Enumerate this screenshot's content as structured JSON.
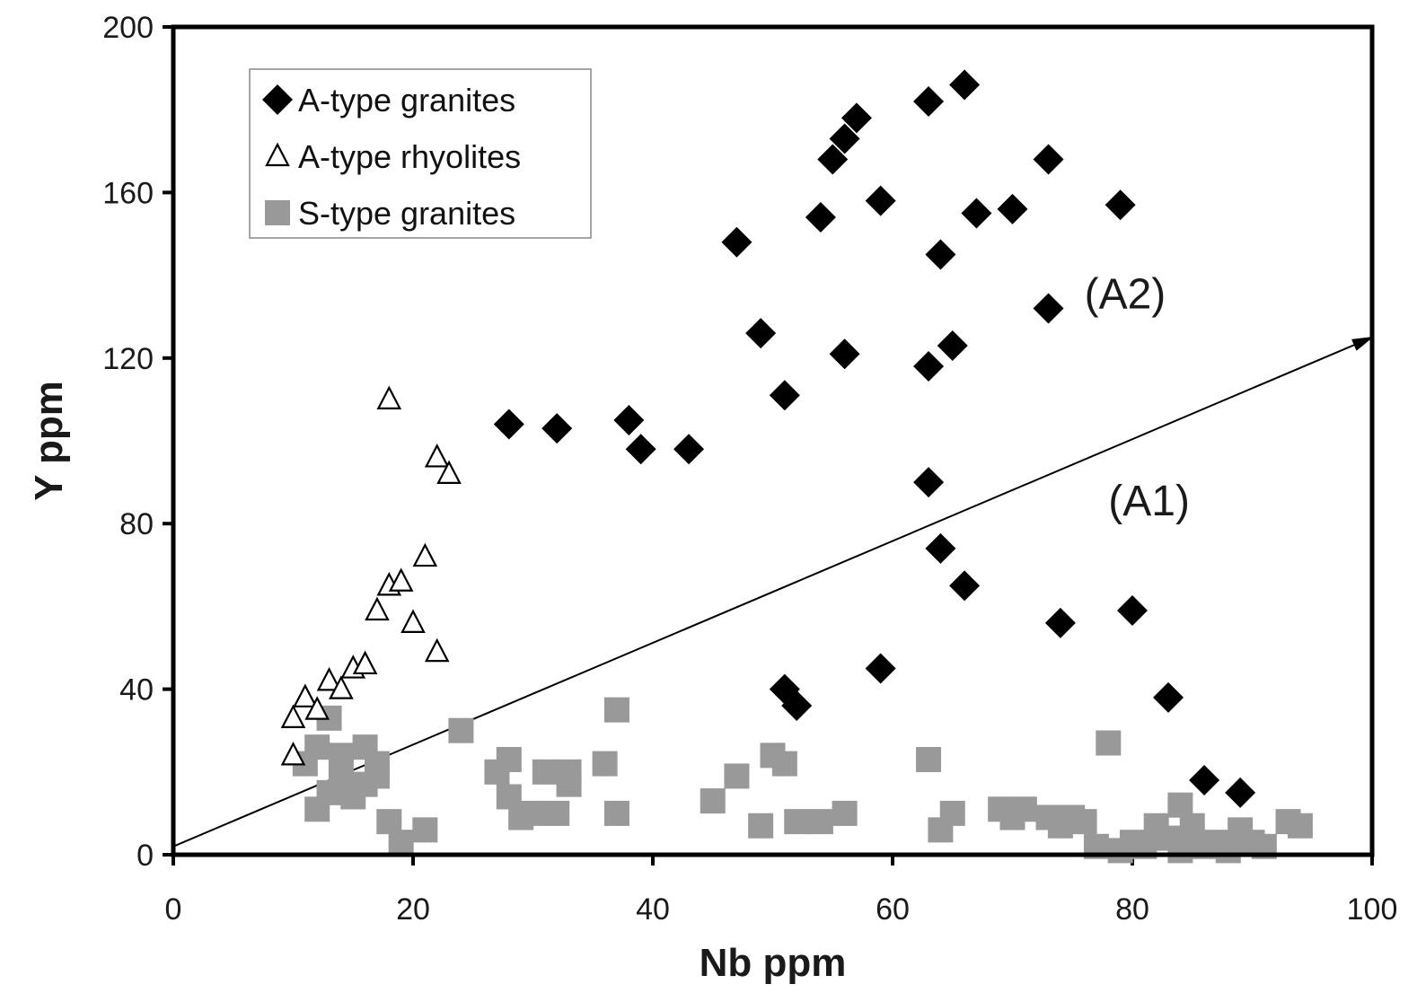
{
  "chart_data": {
    "type": "scatter",
    "xlabel": "Nb ppm",
    "ylabel": "Y ppm",
    "xlim": [
      0,
      100
    ],
    "ylim": [
      0,
      200
    ],
    "xticks": [
      "0",
      "20",
      "40",
      "60",
      "80",
      "100"
    ],
    "yticks": [
      "0",
      "40",
      "80",
      "120",
      "160",
      "200"
    ],
    "grid": false,
    "legend_position": "top-left",
    "series": [
      {
        "name": "A-type granites",
        "marker": "filled-diamond",
        "color": "#000000",
        "points": [
          [
            28,
            104
          ],
          [
            32,
            103
          ],
          [
            38,
            105
          ],
          [
            39,
            98
          ],
          [
            43,
            98
          ],
          [
            47,
            148
          ],
          [
            49,
            126
          ],
          [
            51,
            111
          ],
          [
            51,
            40
          ],
          [
            52,
            36
          ],
          [
            54,
            154
          ],
          [
            55,
            168
          ],
          [
            56,
            173
          ],
          [
            56,
            121
          ],
          [
            57,
            178
          ],
          [
            59,
            158
          ],
          [
            59,
            45
          ],
          [
            63,
            182
          ],
          [
            63,
            118
          ],
          [
            63,
            90
          ],
          [
            64,
            145
          ],
          [
            64,
            74
          ],
          [
            65,
            123
          ],
          [
            66,
            186
          ],
          [
            66,
            65
          ],
          [
            67,
            155
          ],
          [
            70,
            156
          ],
          [
            73,
            168
          ],
          [
            73,
            132
          ],
          [
            74,
            56
          ],
          [
            79,
            157
          ],
          [
            80,
            59
          ],
          [
            83,
            38
          ],
          [
            86,
            18
          ],
          [
            89,
            15
          ]
        ]
      },
      {
        "name": "A-type rhyolites",
        "marker": "open-triangle",
        "color": "#000000",
        "points": [
          [
            10,
            24
          ],
          [
            10,
            33
          ],
          [
            11,
            38
          ],
          [
            12,
            35
          ],
          [
            13,
            42
          ],
          [
            14,
            40
          ],
          [
            15,
            45
          ],
          [
            16,
            46
          ],
          [
            17,
            59
          ],
          [
            18,
            110
          ],
          [
            18,
            65
          ],
          [
            19,
            66
          ],
          [
            20,
            56
          ],
          [
            21,
            72
          ],
          [
            22,
            96
          ],
          [
            22,
            49
          ],
          [
            23,
            92
          ]
        ]
      },
      {
        "name": "S-type granites",
        "marker": "filled-square",
        "color": "#999999",
        "points": [
          [
            11,
            22
          ],
          [
            12,
            11
          ],
          [
            12,
            26
          ],
          [
            13,
            33
          ],
          [
            13,
            15
          ],
          [
            14,
            18
          ],
          [
            14,
            24
          ],
          [
            15,
            14
          ],
          [
            16,
            26
          ],
          [
            16,
            17
          ],
          [
            17,
            22
          ],
          [
            17,
            19
          ],
          [
            18,
            8
          ],
          [
            19,
            3
          ],
          [
            21,
            6
          ],
          [
            24,
            30
          ],
          [
            27,
            20
          ],
          [
            28,
            23
          ],
          [
            28,
            14
          ],
          [
            29,
            9
          ],
          [
            30,
            10
          ],
          [
            31,
            20
          ],
          [
            32,
            10
          ],
          [
            33,
            20
          ],
          [
            33,
            17
          ],
          [
            36,
            22
          ],
          [
            37,
            35
          ],
          [
            37,
            10
          ],
          [
            45,
            13
          ],
          [
            47,
            19
          ],
          [
            49,
            7
          ],
          [
            50,
            24
          ],
          [
            51,
            22
          ],
          [
            52,
            8
          ],
          [
            54,
            8
          ],
          [
            56,
            10
          ],
          [
            63,
            23
          ],
          [
            64,
            6
          ],
          [
            65,
            10
          ],
          [
            69,
            11
          ],
          [
            70,
            9
          ],
          [
            71,
            11
          ],
          [
            73,
            9
          ],
          [
            74,
            7
          ],
          [
            75,
            9
          ],
          [
            76,
            8
          ],
          [
            77,
            2
          ],
          [
            78,
            27
          ],
          [
            79,
            1
          ],
          [
            80,
            3
          ],
          [
            81,
            2
          ],
          [
            82,
            7
          ],
          [
            83,
            4
          ],
          [
            84,
            12
          ],
          [
            84,
            1
          ],
          [
            85,
            7
          ],
          [
            86,
            2
          ],
          [
            87,
            3
          ],
          [
            88,
            1
          ],
          [
            89,
            6
          ],
          [
            90,
            3
          ],
          [
            91,
            2
          ],
          [
            93,
            8
          ],
          [
            94,
            7
          ]
        ]
      }
    ],
    "lines": [
      {
        "from": [
          0,
          2
        ],
        "to": [
          100,
          125
        ],
        "arrowhead": "end",
        "color": "#000000"
      }
    ],
    "annotations": [
      {
        "text": "(A2)",
        "x": 76,
        "y": 132
      },
      {
        "text": "(A1)",
        "x": 78,
        "y": 82
      }
    ]
  }
}
